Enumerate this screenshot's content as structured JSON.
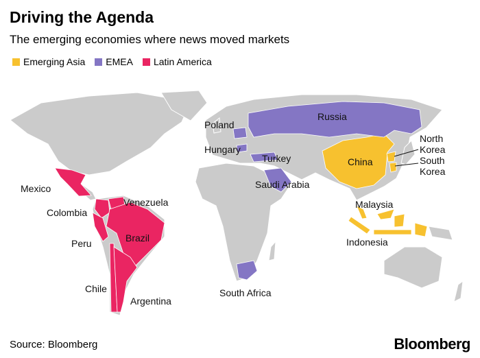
{
  "header": {
    "title": "Driving the Agenda",
    "subtitle": "The emerging economies where news moved markets"
  },
  "map": {
    "land_color": "#cbcbcb",
    "legend": [
      {
        "label": "Emerging Asia",
        "color": "#f7c12f",
        "countries": [
          "China",
          "North Korea",
          "South Korea",
          "Malaysia",
          "Indonesia"
        ]
      },
      {
        "label": "EMEA",
        "color": "#8476c4",
        "countries": [
          "Russia",
          "Poland",
          "Hungary",
          "Turkey",
          "Saudi Arabia",
          "South Africa"
        ]
      },
      {
        "label": "Latin America",
        "color": "#ea2562",
        "countries": [
          "Mexico",
          "Colombia",
          "Venezuela",
          "Peru",
          "Brazil",
          "Chile",
          "Argentina"
        ]
      }
    ]
  },
  "footer": {
    "source": "Source: Bloomberg",
    "logo": "Bloomberg"
  }
}
